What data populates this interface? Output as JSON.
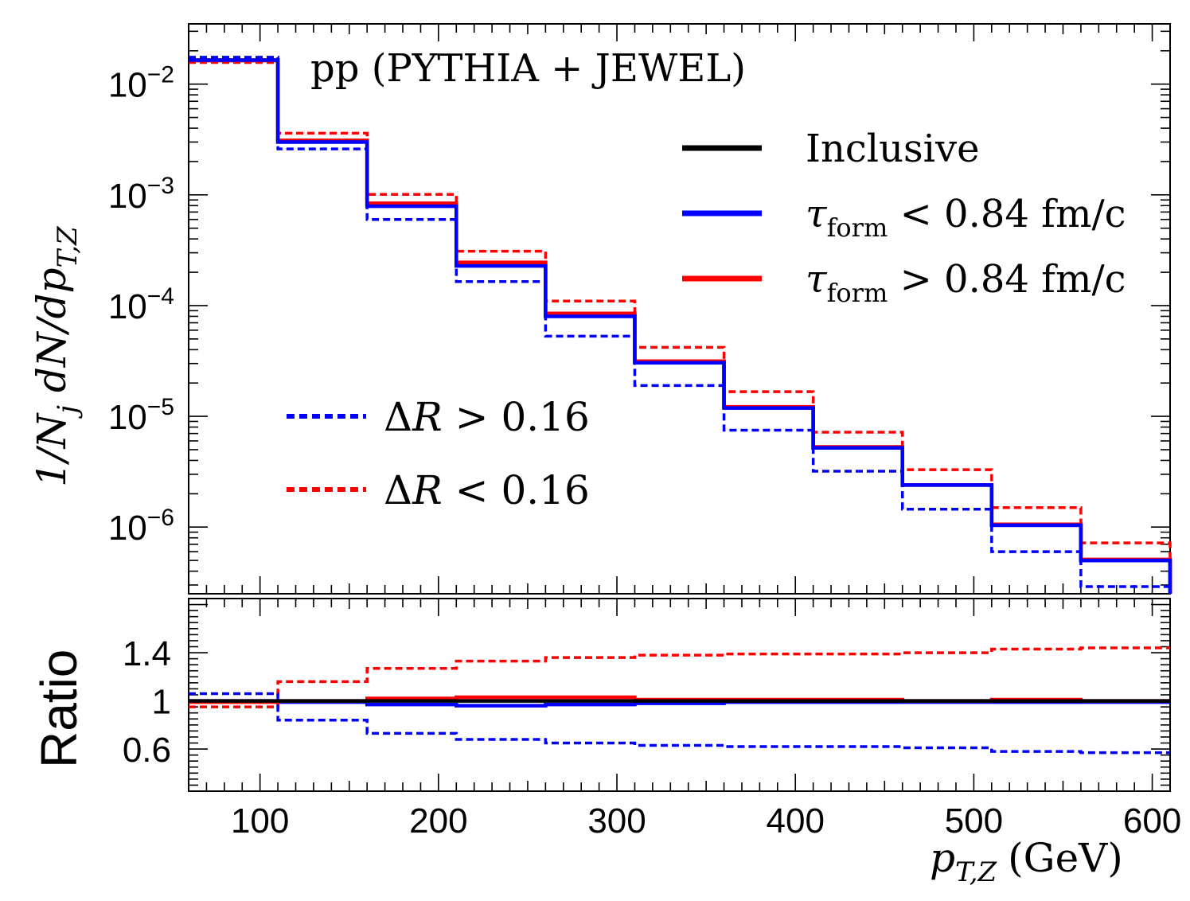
{
  "chart_data": {
    "type": "line",
    "step": true,
    "title": "pp (PYTHIA + JEWEL)",
    "xlabel": "p_{T,Z} (GeV)",
    "xlabel_main": "p",
    "xlabel_sub": "T,Z",
    "xlabel_unit": "(GeV)",
    "ylabel": "1/N_j dN/dp_{T,Z}",
    "ylabel_pre": "1/N",
    "ylabel_j": "j",
    "ylabel_mid": " dN/dp",
    "ylabel_sub": "T,Z",
    "xlim": [
      60,
      610
    ],
    "ylim": [
      2.5e-07,
      0.035
    ],
    "yscale": "log",
    "bin_edges": [
      60,
      110,
      160,
      210,
      260,
      310,
      360,
      410,
      460,
      510,
      560,
      610
    ],
    "x_ticks": [
      100,
      200,
      300,
      400,
      500,
      600
    ],
    "x_tick_labels": [
      "100",
      "200",
      "300",
      "400",
      "500",
      "600"
    ],
    "y_ticks": [
      {
        "value": 0.01,
        "base": "10",
        "exp": "−2"
      },
      {
        "value": 0.001,
        "base": "10",
        "exp": "−3"
      },
      {
        "value": 0.0001,
        "base": "10",
        "exp": "−4"
      },
      {
        "value": 1e-05,
        "base": "10",
        "exp": "−5"
      },
      {
        "value": 1e-06,
        "base": "10",
        "exp": "−6"
      }
    ],
    "series": [
      {
        "name": "Inclusive",
        "color": "#000000",
        "style": "solid",
        "values": [
          0.0165,
          0.0031,
          0.00082,
          0.00024,
          8.2e-05,
          3.1e-05,
          1.2e-05,
          5.2e-06,
          2.4e-06,
          1.04e-06,
          5e-07
        ]
      },
      {
        "name": "τ_form < 0.84 fm/c",
        "color": "#0000ff",
        "style": "solid",
        "values": [
          0.0165,
          0.003,
          0.00079,
          0.000228,
          8e-05,
          3.05e-05,
          1.19e-05,
          5.2e-06,
          2.4e-06,
          1.04e-06,
          5e-07
        ]
      },
      {
        "name": "τ_form > 0.84 fm/c",
        "color": "#ff0000",
        "style": "solid",
        "values": [
          0.0163,
          0.0031,
          0.00084,
          0.000246,
          8.5e-05,
          3.15e-05,
          1.22e-05,
          5.3e-06,
          2.4e-06,
          1.06e-06,
          5.1e-07
        ]
      },
      {
        "name": "ΔR > 0.16",
        "color": "#0000ff",
        "style": "dotted",
        "values": [
          0.0175,
          0.0026,
          0.0006,
          0.000165,
          5.3e-05,
          1.9e-05,
          7.5e-06,
          3.2e-06,
          1.45e-06,
          6e-07,
          2.9e-07
        ]
      },
      {
        "name": "ΔR < 0.16",
        "color": "#ff0000",
        "style": "dotted",
        "values": [
          0.0157,
          0.0036,
          0.00101,
          0.00031,
          0.00011,
          4.2e-05,
          1.67e-05,
          7.2e-06,
          3.3e-06,
          1.5e-06,
          7.2e-07
        ]
      }
    ],
    "legend": {
      "placement": "top-right",
      "entries": [
        {
          "main": "Inclusive",
          "color": "#000000",
          "style": "solid"
        },
        {
          "main": "τ",
          "sub": "form",
          "rest": " < 0.84 fm/c",
          "color": "#0000ff",
          "style": "solid"
        },
        {
          "main": "τ",
          "sub": "form",
          "rest": " > 0.84 fm/c",
          "color": "#ff0000",
          "style": "solid"
        }
      ],
      "placement2": "lower-left",
      "entries2": [
        {
          "main": "Δ",
          "italic": "R",
          "rest": " > 0.16",
          "color": "#0000ff",
          "style": "dotted"
        },
        {
          "main": "Δ",
          "italic": "R",
          "rest": " < 0.16",
          "color": "#ff0000",
          "style": "dotted"
        }
      ]
    },
    "ratio_panel": {
      "ylabel": "Ratio",
      "ylim": [
        0.25,
        1.85
      ],
      "y_ticks": [
        0.6,
        1,
        1.4
      ],
      "y_tick_labels": [
        "0.6",
        "1",
        "1.4"
      ],
      "series": [
        {
          "name": "Inclusive",
          "color": "#000000",
          "style": "solid",
          "values": [
            1,
            1,
            1,
            1,
            1,
            1,
            1,
            1,
            1,
            1,
            1
          ]
        },
        {
          "name": "τ_form < 0.84 fm/c",
          "color": "#0000ff",
          "style": "solid",
          "values": [
            1.0,
            0.99,
            0.97,
            0.96,
            0.97,
            0.98,
            0.99,
            0.99,
            0.99,
            0.99,
            0.99
          ]
        },
        {
          "name": "τ_form > 0.84 fm/c",
          "color": "#ff0000",
          "style": "solid",
          "values": [
            0.99,
            1.0,
            1.02,
            1.03,
            1.03,
            1.01,
            1.01,
            1.01,
            1.0,
            1.01,
            1.0
          ]
        },
        {
          "name": "ΔR > 0.16",
          "color": "#0000ff",
          "style": "dotted",
          "values": [
            1.06,
            0.84,
            0.73,
            0.68,
            0.65,
            0.63,
            0.62,
            0.62,
            0.61,
            0.58,
            0.57
          ]
        },
        {
          "name": "ΔR < 0.16",
          "color": "#ff0000",
          "style": "dotted",
          "values": [
            0.95,
            1.16,
            1.27,
            1.33,
            1.36,
            1.38,
            1.39,
            1.39,
            1.4,
            1.43,
            1.44
          ]
        }
      ]
    }
  }
}
